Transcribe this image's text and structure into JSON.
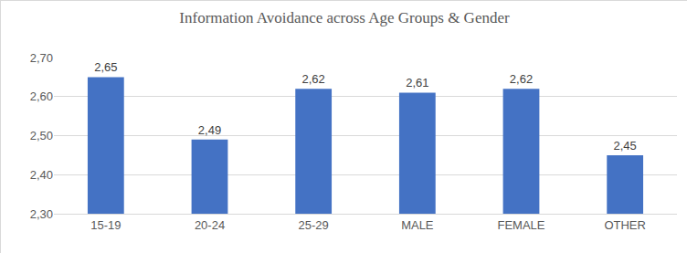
{
  "chart_data": {
    "type": "bar",
    "title": "Information Avoidance across Age Groups & Gender",
    "categories": [
      "15-19",
      "20-24",
      "25-29",
      "MALE",
      "FEMALE",
      "OTHER"
    ],
    "values": [
      2.65,
      2.49,
      2.62,
      2.61,
      2.62,
      2.45
    ],
    "value_labels": [
      "2,65",
      "2,49",
      "2,62",
      "2,61",
      "2,62",
      "2,45"
    ],
    "data_labels": true,
    "color": "#4472c4",
    "ylim": [
      2.3,
      2.7
    ],
    "yticks": [
      {
        "value": 2.3,
        "label": "2,30"
      },
      {
        "value": 2.4,
        "label": "2,40"
      },
      {
        "value": 2.5,
        "label": "2,50"
      },
      {
        "value": 2.6,
        "label": "2,60"
      },
      {
        "value": 2.7,
        "label": "2,70"
      }
    ],
    "grid": true
  }
}
